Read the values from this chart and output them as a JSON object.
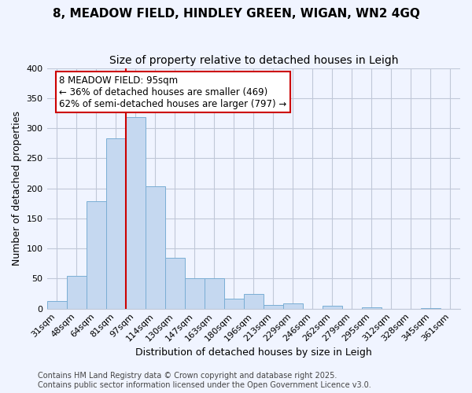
{
  "title": "8, MEADOW FIELD, HINDLEY GREEN, WIGAN, WN2 4GQ",
  "subtitle": "Size of property relative to detached houses in Leigh",
  "xlabel": "Distribution of detached houses by size in Leigh",
  "ylabel": "Number of detached properties",
  "bin_labels": [
    "31sqm",
    "48sqm",
    "64sqm",
    "81sqm",
    "97sqm",
    "114sqm",
    "130sqm",
    "147sqm",
    "163sqm",
    "180sqm",
    "196sqm",
    "213sqm",
    "229sqm",
    "246sqm",
    "262sqm",
    "279sqm",
    "295sqm",
    "312sqm",
    "328sqm",
    "345sqm",
    "361sqm"
  ],
  "bar_values": [
    13,
    54,
    178,
    283,
    318,
    204,
    84,
    51,
    50,
    16,
    24,
    6,
    9,
    0,
    5,
    0,
    2,
    0,
    0,
    1,
    0
  ],
  "bar_color": "#c5d8f0",
  "bar_edgecolor": "#7aaed4",
  "bg_color": "#f0f4ff",
  "grid_color": "#c0c8d8",
  "vline_x_index": 4,
  "vline_color": "#cc0000",
  "annotation_title": "8 MEADOW FIELD: 95sqm",
  "annotation_line1": "← 36% of detached houses are smaller (469)",
  "annotation_line2": "62% of semi-detached houses are larger (797) →",
  "annotation_box_color": "#ffffff",
  "annotation_box_edgecolor": "#cc0000",
  "ylim": [
    0,
    400
  ],
  "yticks": [
    0,
    50,
    100,
    150,
    200,
    250,
    300,
    350,
    400
  ],
  "footer_line1": "Contains HM Land Registry data © Crown copyright and database right 2025.",
  "footer_line2": "Contains public sector information licensed under the Open Government Licence v3.0.",
  "title_fontsize": 11,
  "subtitle_fontsize": 10,
  "axis_label_fontsize": 9,
  "tick_fontsize": 8,
  "annotation_fontsize": 8.5,
  "footer_fontsize": 7
}
